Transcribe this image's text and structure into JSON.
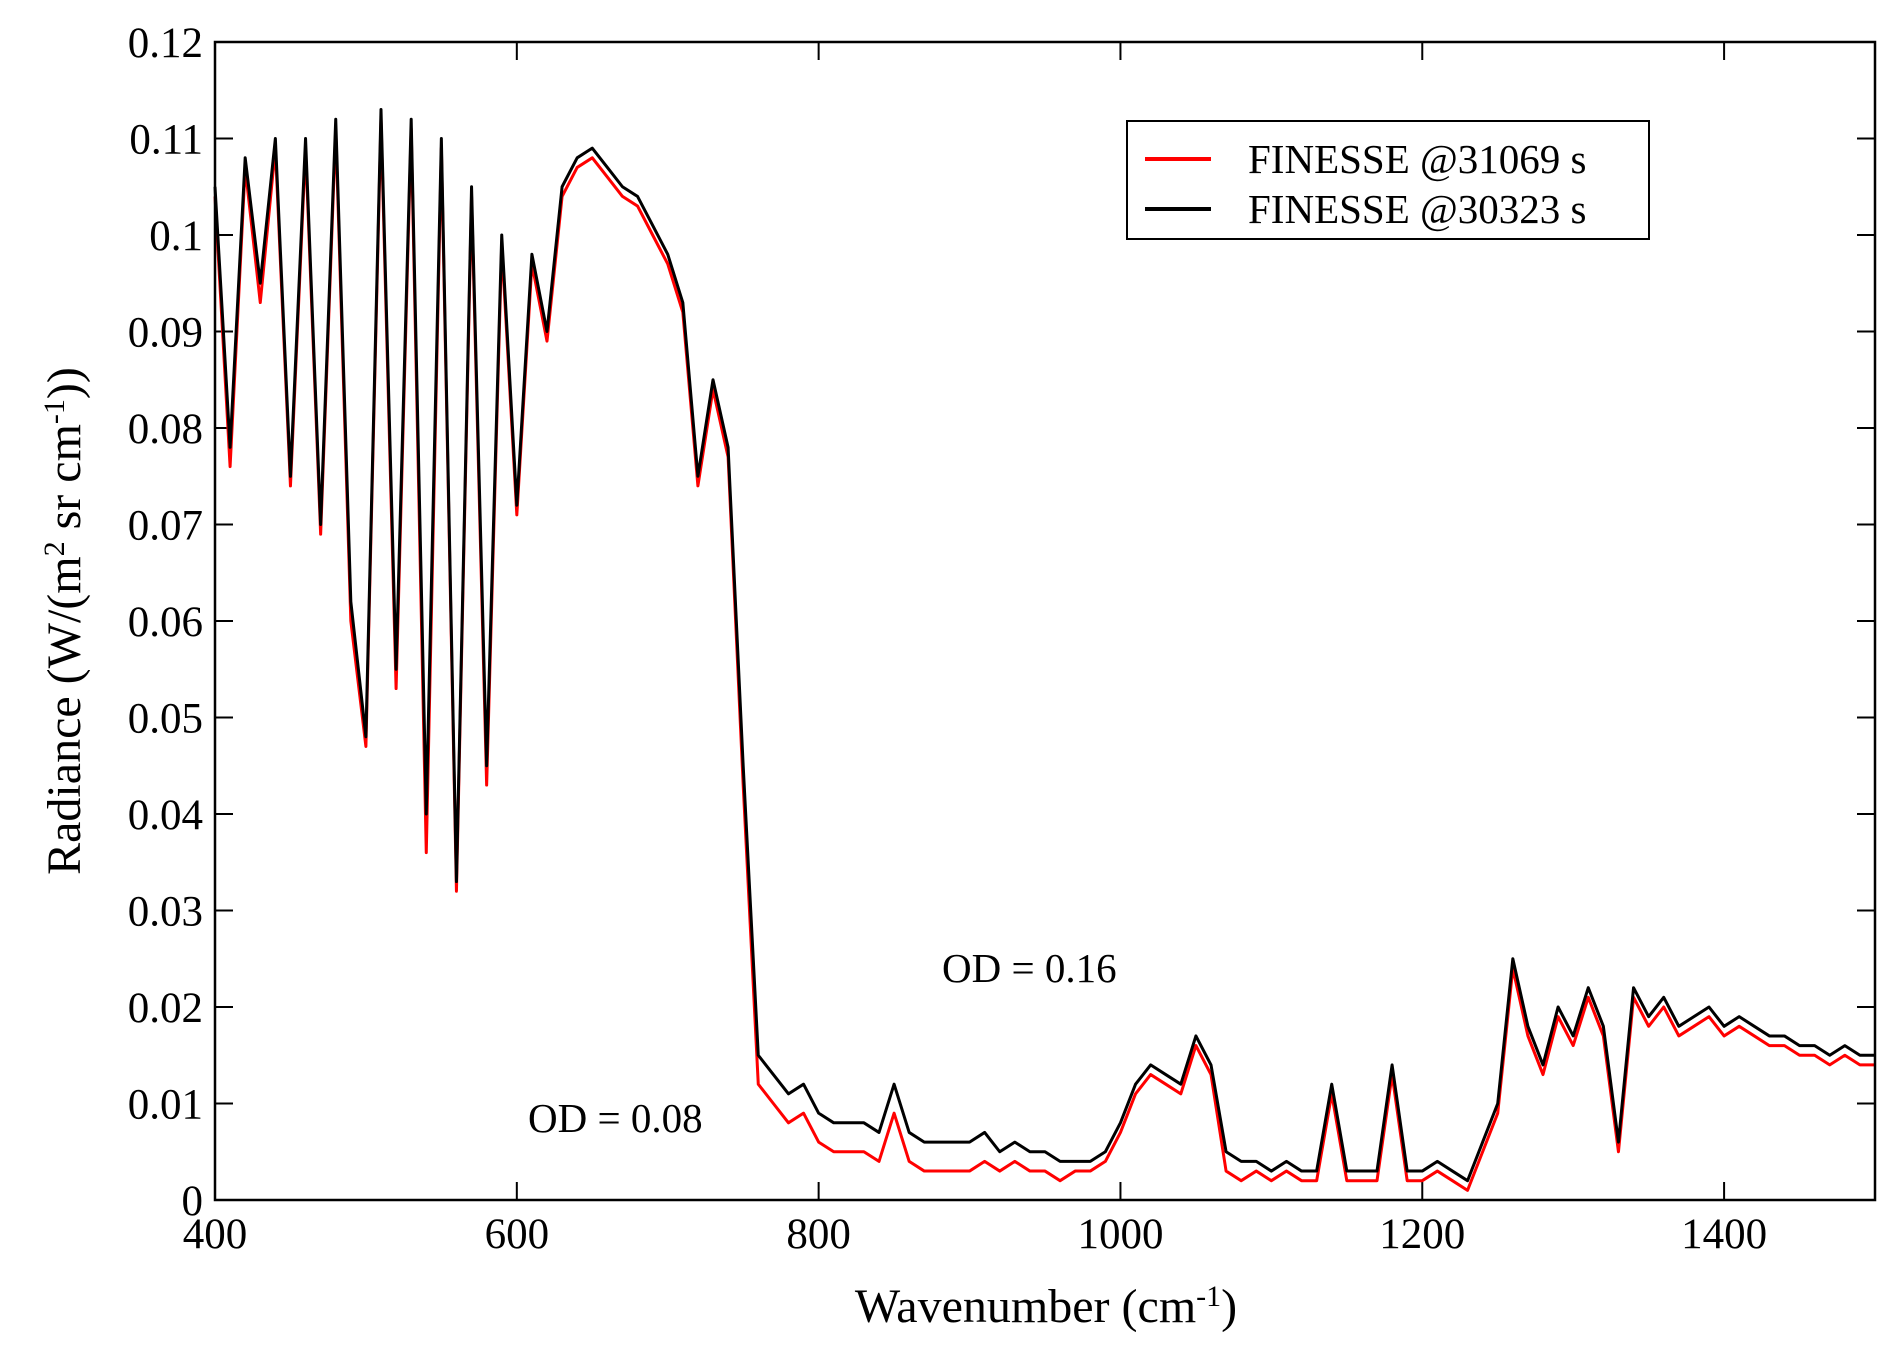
{
  "chart_data": {
    "type": "line",
    "y_label": [
      "Radiance (W/(m",
      "2",
      " sr cm",
      "-1",
      "))"
    ],
    "x_label": [
      "Wavenumber (cm",
      "-1",
      ")"
    ],
    "x": [
      400,
      410,
      420,
      430,
      440,
      450,
      460,
      470,
      480,
      490,
      500,
      510,
      520,
      530,
      540,
      550,
      560,
      570,
      580,
      590,
      600,
      610,
      620,
      630,
      640,
      650,
      660,
      670,
      680,
      690,
      700,
      710,
      720,
      730,
      740,
      750,
      760,
      770,
      780,
      790,
      800,
      810,
      820,
      830,
      840,
      850,
      860,
      870,
      880,
      890,
      900,
      910,
      920,
      930,
      940,
      950,
      960,
      970,
      980,
      990,
      1000,
      1010,
      1020,
      1030,
      1040,
      1050,
      1060,
      1070,
      1080,
      1090,
      1100,
      1110,
      1120,
      1130,
      1140,
      1150,
      1160,
      1170,
      1180,
      1190,
      1200,
      1210,
      1220,
      1230,
      1240,
      1250,
      1260,
      1270,
      1280,
      1290,
      1300,
      1310,
      1320,
      1330,
      1340,
      1350,
      1360,
      1370,
      1380,
      1390,
      1400,
      1410,
      1420,
      1430,
      1440,
      1450,
      1460,
      1470,
      1480,
      1490,
      1500
    ],
    "series": [
      {
        "name": "FINESSE @31069 s",
        "color": "#ff0000",
        "values": [
          0.104,
          0.076,
          0.107,
          0.093,
          0.109,
          0.074,
          0.109,
          0.069,
          0.111,
          0.06,
          0.047,
          0.112,
          0.053,
          0.111,
          0.036,
          0.109,
          0.032,
          0.104,
          0.043,
          0.099,
          0.071,
          0.097,
          0.089,
          0.104,
          0.107,
          0.108,
          0.106,
          0.104,
          0.103,
          0.1,
          0.097,
          0.092,
          0.074,
          0.084,
          0.077,
          0.043,
          0.012,
          0.01,
          0.008,
          0.009,
          0.006,
          0.005,
          0.005,
          0.005,
          0.004,
          0.009,
          0.004,
          0.003,
          0.003,
          0.003,
          0.003,
          0.004,
          0.003,
          0.004,
          0.003,
          0.003,
          0.002,
          0.003,
          0.003,
          0.004,
          0.007,
          0.011,
          0.013,
          0.012,
          0.011,
          0.016,
          0.013,
          0.003,
          0.002,
          0.003,
          0.002,
          0.003,
          0.002,
          0.002,
          0.011,
          0.002,
          0.002,
          0.002,
          0.013,
          0.002,
          0.002,
          0.003,
          0.002,
          0.001,
          0.005,
          0.009,
          0.024,
          0.017,
          0.013,
          0.019,
          0.016,
          0.021,
          0.017,
          0.005,
          0.021,
          0.018,
          0.02,
          0.017,
          0.018,
          0.019,
          0.017,
          0.018,
          0.017,
          0.016,
          0.016,
          0.015,
          0.015,
          0.014,
          0.015,
          0.014,
          0.014
        ]
      },
      {
        "name": "FINESSE @30323 s",
        "color": "#000000",
        "values": [
          0.105,
          0.078,
          0.108,
          0.095,
          0.11,
          0.075,
          0.11,
          0.07,
          0.112,
          0.062,
          0.048,
          0.113,
          0.055,
          0.112,
          0.04,
          0.11,
          0.033,
          0.105,
          0.045,
          0.1,
          0.072,
          0.098,
          0.09,
          0.105,
          0.108,
          0.109,
          0.107,
          0.105,
          0.104,
          0.101,
          0.098,
          0.093,
          0.075,
          0.085,
          0.078,
          0.045,
          0.015,
          0.013,
          0.011,
          0.012,
          0.009,
          0.008,
          0.008,
          0.008,
          0.007,
          0.012,
          0.007,
          0.006,
          0.006,
          0.006,
          0.006,
          0.007,
          0.005,
          0.006,
          0.005,
          0.005,
          0.004,
          0.004,
          0.004,
          0.005,
          0.008,
          0.012,
          0.014,
          0.013,
          0.012,
          0.017,
          0.014,
          0.005,
          0.004,
          0.004,
          0.003,
          0.004,
          0.003,
          0.003,
          0.012,
          0.003,
          0.003,
          0.003,
          0.014,
          0.003,
          0.003,
          0.004,
          0.003,
          0.002,
          0.006,
          0.01,
          0.025,
          0.018,
          0.014,
          0.02,
          0.017,
          0.022,
          0.018,
          0.006,
          0.022,
          0.019,
          0.021,
          0.018,
          0.019,
          0.02,
          0.018,
          0.019,
          0.018,
          0.017,
          0.017,
          0.016,
          0.016,
          0.015,
          0.016,
          0.015,
          0.015
        ]
      }
    ],
    "annotations": [
      {
        "text": "OD = 0.16",
        "color": "#000000"
      },
      {
        "text": "OD = 0.08",
        "color": "#ff0000"
      }
    ],
    "xlim": [
      400,
      1500
    ],
    "ylim": [
      0,
      0.12
    ],
    "xticks": [
      400,
      600,
      800,
      1000,
      1200,
      1400
    ],
    "yticks": [
      0,
      0.01,
      0.02,
      0.03,
      0.04,
      0.05,
      0.06,
      0.07,
      0.08,
      0.09,
      0.1,
      0.11,
      0.12
    ],
    "legend": "upper right"
  }
}
